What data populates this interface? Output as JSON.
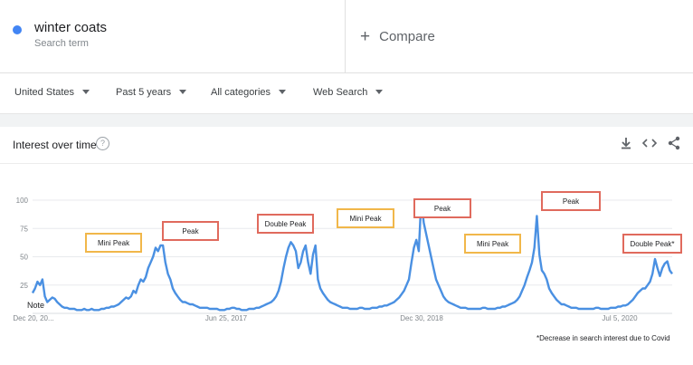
{
  "search_term": {
    "name": "winter coats",
    "subtitle": "Search term",
    "color": "#4285f4"
  },
  "compare": {
    "plus": "+",
    "label": "Compare"
  },
  "filters": [
    {
      "label": "United States"
    },
    {
      "label": "Past 5 years"
    },
    {
      "label": "All categories"
    },
    {
      "label": "Web Search"
    }
  ],
  "card": {
    "title": "Interest over time",
    "help": "?"
  },
  "icons": {
    "download": "download-icon",
    "embed": "embed-code-icon",
    "share": "share-icon"
  },
  "footnote": "*Decrease in search interest due to Covid",
  "note_label": "Note",
  "annotations": [
    {
      "text": "Mini Peak",
      "kind": "mini"
    },
    {
      "text": "Peak",
      "kind": "peak"
    },
    {
      "text": "Double Peak",
      "kind": "peak"
    },
    {
      "text": "Mini Peak",
      "kind": "mini"
    },
    {
      "text": "Peak",
      "kind": "peak"
    },
    {
      "text": "Mini Peak",
      "kind": "mini"
    },
    {
      "text": "Peak",
      "kind": "peak"
    },
    {
      "text": "Double Peak*",
      "kind": "peak"
    }
  ],
  "colors": {
    "line": "#4a90e2",
    "peak_box": "#e06a5d",
    "mini_box": "#f1b74a"
  },
  "chart_data": {
    "type": "line",
    "ylim": [
      0,
      100
    ],
    "yticks": [
      25,
      50,
      75,
      100
    ],
    "xticks": [
      "Dec 20, 20...",
      "Jun 25, 2017",
      "Dec 30, 2018",
      "Jul 5, 2020"
    ],
    "series": [
      {
        "values": [
          18,
          22,
          28,
          25,
          30,
          15,
          10,
          12,
          14,
          13,
          10,
          8,
          6,
          5,
          5,
          4,
          4,
          4,
          3,
          3,
          3,
          4,
          3,
          3,
          4,
          3,
          3,
          3,
          4,
          4,
          5,
          5,
          6,
          6,
          7,
          8,
          10,
          12,
          14,
          13,
          15,
          20,
          18,
          25,
          30,
          28,
          32,
          40,
          45,
          50,
          58,
          55,
          60,
          60,
          45,
          35,
          30,
          22,
          18,
          15,
          12,
          10,
          10,
          9,
          8,
          8,
          7,
          6,
          5,
          5,
          5,
          5,
          4,
          4,
          4,
          4,
          3,
          3,
          3,
          4,
          4,
          5,
          5,
          4,
          4,
          3,
          3,
          3,
          4,
          4,
          4,
          5,
          5,
          6,
          7,
          8,
          9,
          10,
          12,
          15,
          20,
          28,
          40,
          50,
          58,
          63,
          60,
          55,
          40,
          45,
          55,
          60,
          45,
          35,
          52,
          60,
          30,
          22,
          18,
          15,
          12,
          10,
          9,
          8,
          7,
          6,
          5,
          5,
          5,
          4,
          4,
          4,
          4,
          5,
          5,
          4,
          4,
          4,
          5,
          5,
          5,
          6,
          6,
          7,
          7,
          8,
          9,
          10,
          12,
          14,
          17,
          20,
          25,
          30,
          45,
          58,
          65,
          55,
          100,
          80,
          70,
          60,
          50,
          40,
          30,
          25,
          20,
          15,
          12,
          10,
          9,
          8,
          7,
          6,
          5,
          5,
          5,
          4,
          4,
          4,
          4,
          4,
          4,
          5,
          5,
          4,
          4,
          4,
          4,
          5,
          5,
          6,
          6,
          7,
          8,
          9,
          10,
          12,
          15,
          20,
          25,
          32,
          38,
          45,
          58,
          86,
          52,
          38,
          35,
          30,
          22,
          18,
          15,
          12,
          10,
          8,
          8,
          7,
          6,
          5,
          5,
          5,
          4,
          4,
          4,
          4,
          4,
          4,
          4,
          5,
          5,
          4,
          4,
          4,
          4,
          5,
          5,
          5,
          6,
          6,
          7,
          7,
          8,
          10,
          12,
          15,
          18,
          20,
          22,
          22,
          25,
          28,
          35,
          48,
          40,
          33,
          40,
          44,
          46,
          38,
          35
        ]
      }
    ]
  }
}
